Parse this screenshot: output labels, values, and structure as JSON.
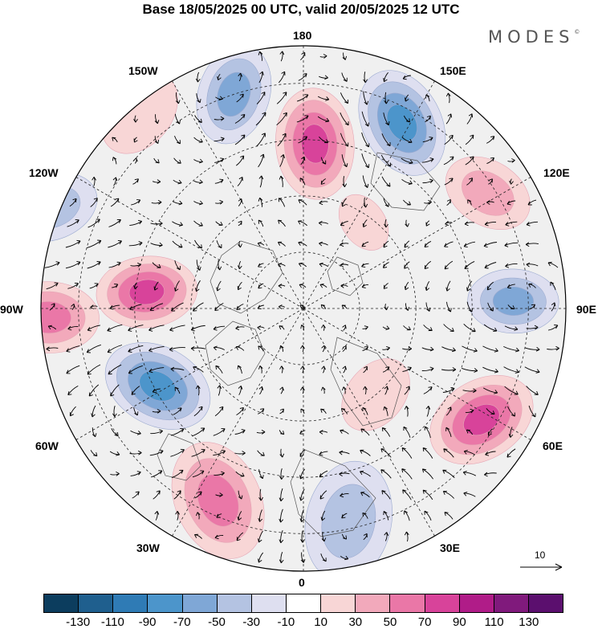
{
  "title": "Base 18/05/2025 00 UTC, valid 20/05/2025 12 UTC",
  "brand": "MODES",
  "brand_mark": "©",
  "longitude_labels": {
    "top": "180",
    "top_left": "150W",
    "top_right": "150E",
    "upper_left": "120W",
    "upper_right": "120E",
    "left": "90W",
    "right": "90E",
    "lower_left": "60W",
    "lower_right": "60E",
    "bottom_left": "30W",
    "bottom_right": "30E",
    "bottom": "0"
  },
  "reference_vector_label": "10",
  "colorbar": {
    "ticks": [
      "-130",
      "-110",
      "-90",
      "-70",
      "-50",
      "-30",
      "-10",
      "10",
      "30",
      "50",
      "70",
      "90",
      "110",
      "130"
    ],
    "colors": [
      "#0c3d5e",
      "#1f5f8e",
      "#2f7bb5",
      "#4c95cb",
      "#7fa7d6",
      "#b4c3e2",
      "#dedff0",
      "#ffffff",
      "#f8d6d6",
      "#f2a9bb",
      "#ea77a7",
      "#d8439a",
      "#b01c88",
      "#801a7c",
      "#5b0f6e"
    ]
  },
  "anomaly_features": [
    {
      "lon_deg": 176,
      "colat_deg": 44,
      "radius_deg": 11,
      "value": 95
    },
    {
      "lon_deg": 152,
      "colat_deg": 56,
      "radius_deg": 11,
      "value": -80
    },
    {
      "lon_deg": -162,
      "colat_deg": 60,
      "radius_deg": 10,
      "value": -75
    },
    {
      "lon_deg": -140,
      "colat_deg": 68,
      "radius_deg": 9,
      "value": 25
    },
    {
      "lon_deg": -112,
      "colat_deg": 72,
      "radius_deg": 9,
      "value": -45
    },
    {
      "lon_deg": -96,
      "colat_deg": 42,
      "radius_deg": 10,
      "value": 95
    },
    {
      "lon_deg": -88,
      "colat_deg": 68,
      "radius_deg": 10,
      "value": 75
    },
    {
      "lon_deg": -62,
      "colat_deg": 44,
      "radius_deg": 11,
      "value": -90
    },
    {
      "lon_deg": -24,
      "colat_deg": 56,
      "radius_deg": 12,
      "value": 60
    },
    {
      "lon_deg": 12,
      "colat_deg": 58,
      "radius_deg": 12,
      "value": -55
    },
    {
      "lon_deg": 58,
      "colat_deg": 56,
      "radius_deg": 11,
      "value": 95
    },
    {
      "lon_deg": 92,
      "colat_deg": 56,
      "radius_deg": 9,
      "value": -75
    },
    {
      "lon_deg": 122,
      "colat_deg": 58,
      "radius_deg": 9,
      "value": 45
    },
    {
      "lon_deg": 145,
      "colat_deg": 28,
      "radius_deg": 6,
      "value": 25
    },
    {
      "lon_deg": 40,
      "colat_deg": 30,
      "radius_deg": 8,
      "value": 20
    }
  ]
}
